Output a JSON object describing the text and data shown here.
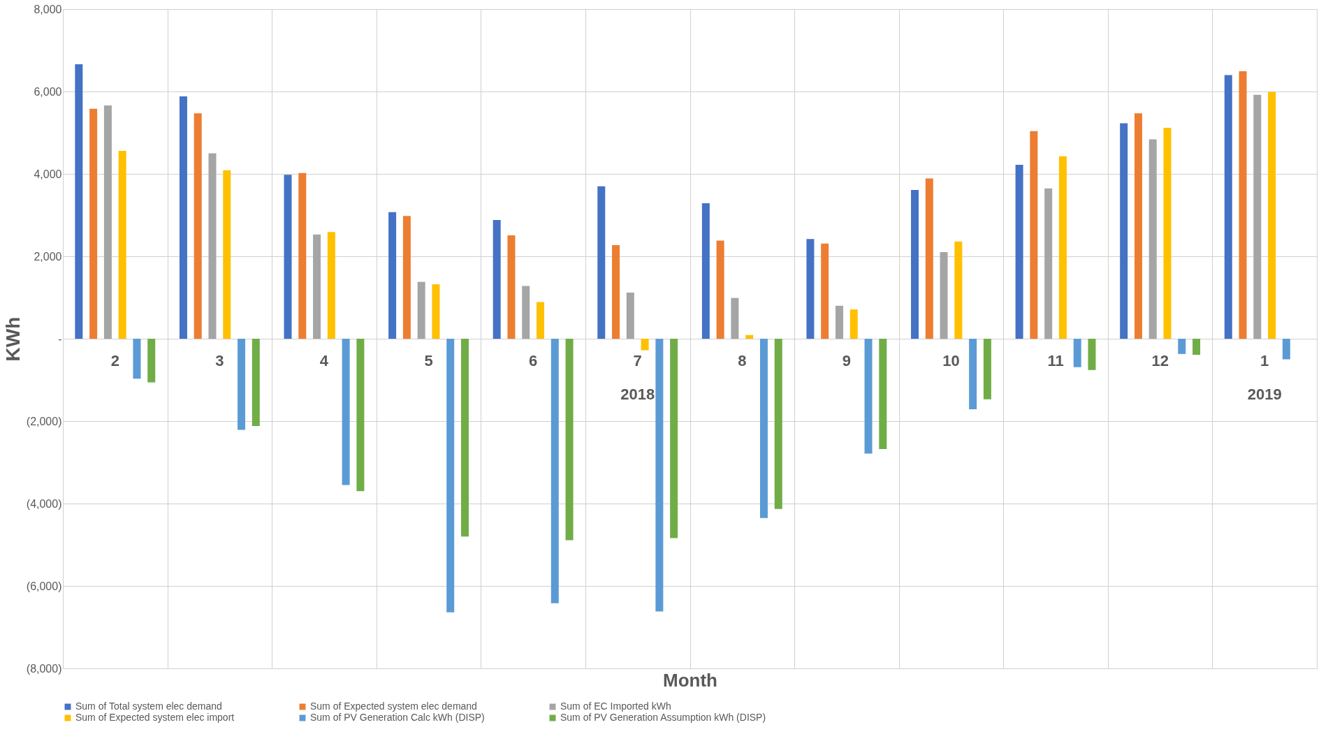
{
  "chart_data": {
    "type": "bar",
    "xlabel": "Month",
    "ylabel": "KWh",
    "categories": [
      "2",
      "3",
      "4",
      "5",
      "6",
      "7",
      "8",
      "9",
      "10",
      "11",
      "12",
      "1"
    ],
    "series": [
      {
        "name": "Sum of Total system elec demand",
        "color": "#4472c4",
        "values": [
          6660,
          5880,
          3980,
          3070,
          2880,
          3700,
          3290,
          2420,
          3610,
          4220,
          5230,
          6400
        ]
      },
      {
        "name": "Sum of Expected system elec demand",
        "color": "#ed7d31",
        "values": [
          5580,
          5470,
          4020,
          2980,
          2510,
          2270,
          2380,
          2310,
          3890,
          5040,
          5470,
          6490
        ]
      },
      {
        "name": "Sum of EC Imported kWh",
        "color": "#a5a5a5",
        "values": [
          5660,
          4500,
          2530,
          1380,
          1280,
          1120,
          990,
          800,
          2100,
          3650,
          4840,
          5920
        ]
      },
      {
        "name": "Sum of Expected system elec import",
        "color": "#ffc000",
        "values": [
          4560,
          4090,
          2590,
          1320,
          890,
          -280,
          90,
          710,
          2360,
          4430,
          5120,
          5990
        ]
      },
      {
        "name": "Sum of PV Generation Calc kWh (DISP)",
        "color": "#5b9bd5",
        "values": [
          -970,
          -2210,
          -3550,
          -6640,
          -6420,
          -6620,
          -4350,
          -2790,
          -1710,
          -690,
          -370,
          -500
        ]
      },
      {
        "name": "Sum of PV Generation Assumption kWh (DISP)",
        "color": "#70ad47",
        "values": [
          -1060,
          -2120,
          -3700,
          -4800,
          -4890,
          -4840,
          -4130,
          -2680,
          -1470,
          -760,
          -390,
          null
        ]
      }
    ],
    "ylim": [
      -8000,
      8000
    ],
    "yticks": [
      {
        "value": -8000,
        "label": "(8,000)"
      },
      {
        "value": -6000,
        "label": "(6,000)"
      },
      {
        "value": -4000,
        "label": "(4,000)"
      },
      {
        "value": -2000,
        "label": "(2,000)"
      },
      {
        "value": 0,
        "label": "-"
      },
      {
        "value": 2000,
        "label": "2,000"
      },
      {
        "value": 4000,
        "label": "4,000"
      },
      {
        "value": 6000,
        "label": "6,000"
      },
      {
        "value": 8000,
        "label": "8,000"
      }
    ],
    "annotations": [
      "2018",
      "2019"
    ],
    "grid": true,
    "legend": "bottom"
  }
}
